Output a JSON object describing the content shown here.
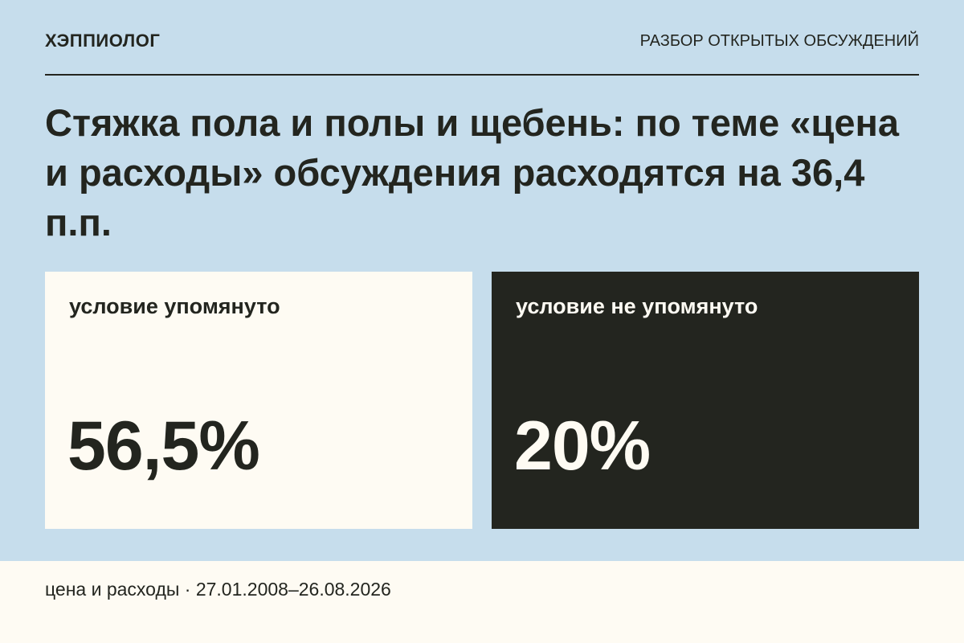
{
  "header": {
    "brand": "ХЭППИОЛОГ",
    "section": "РАЗБОР ОТКРЫТЫХ ОБСУЖДЕНИЙ"
  },
  "title": "Стяжка пола и полы и щебень: по теме «цена и расходы» обсуждения расходятся на 36,4 п.п.",
  "cards": [
    {
      "label": "условие упомянуто",
      "value": "56,5%"
    },
    {
      "label": "условие не упомянуто",
      "value": "20%"
    }
  ],
  "footer": "цена и расходы · 27.01.2008–26.08.2026"
}
